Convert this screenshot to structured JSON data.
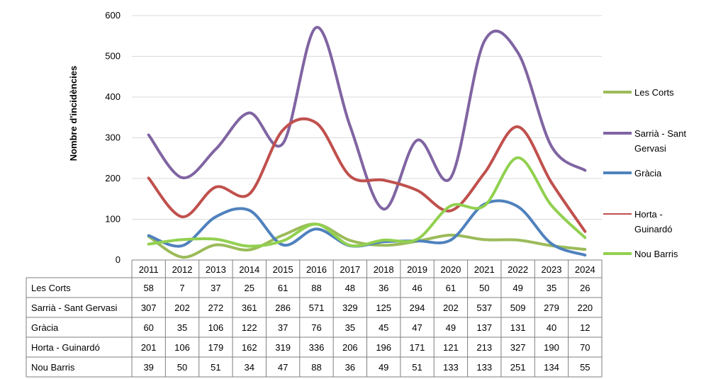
{
  "chart_data": {
    "type": "line",
    "ylabel": "Nombre d'incidències",
    "ylim": [
      0,
      600
    ],
    "yticks": [
      "0",
      "100",
      "200",
      "300",
      "400",
      "500",
      "600"
    ],
    "grid": true,
    "legend_position": "right",
    "x": [
      "2011",
      "2012",
      "2013",
      "2014",
      "2015",
      "2016",
      "2017",
      "2018",
      "2019",
      "2020",
      "2021",
      "2022",
      "2023",
      "2024"
    ],
    "series": [
      {
        "name": "Les Corts",
        "color": "#9bbb59",
        "values": [
          58,
          7,
          37,
          25,
          61,
          88,
          48,
          36,
          46,
          61,
          50,
          49,
          35,
          26
        ]
      },
      {
        "name": "Sarrià - Sant Gervasi",
        "color": "#8064a2",
        "values": [
          307,
          202,
          272,
          361,
          286,
          571,
          329,
          125,
          294,
          202,
          537,
          509,
          279,
          220
        ]
      },
      {
        "name": "Gràcia",
        "color": "#4f81bd",
        "values": [
          60,
          35,
          106,
          122,
          37,
          76,
          35,
          45,
          47,
          49,
          137,
          131,
          40,
          12
        ]
      },
      {
        "name": "Horta - Guinardó",
        "color": "#c0504d",
        "values": [
          201,
          106,
          179,
          162,
          319,
          336,
          206,
          196,
          171,
          121,
          213,
          327,
          190,
          70
        ]
      },
      {
        "name": "Nou Barris",
        "color": "#92d050",
        "values": [
          39,
          50,
          51,
          34,
          47,
          88,
          36,
          49,
          51,
          133,
          133,
          251,
          134,
          55
        ]
      }
    ],
    "legend": [
      {
        "name_lines": [
          "Les Corts"
        ],
        "color": "#9bbb59"
      },
      {
        "name_lines": [
          "Sarrià - Sant",
          "Gervasi"
        ],
        "color": "#8064a2"
      },
      {
        "name_lines": [
          "Gràcia"
        ],
        "color": "#4f81bd"
      },
      {
        "name_lines": [
          "Horta -",
          "Guinardó"
        ],
        "color": "#c0504d"
      },
      {
        "name_lines": [
          "Nou Barris"
        ],
        "color": "#92d050"
      }
    ]
  }
}
